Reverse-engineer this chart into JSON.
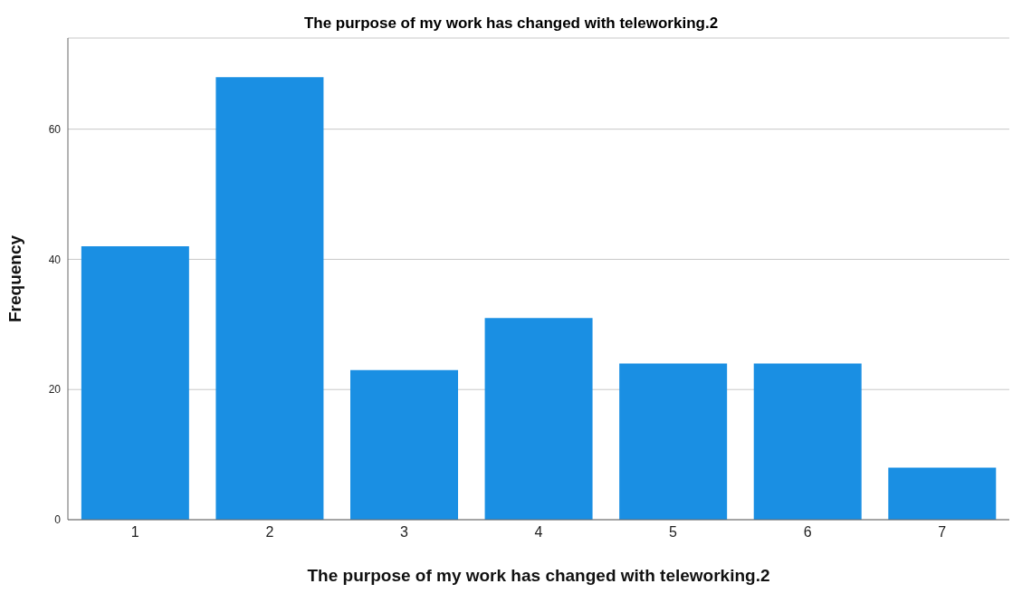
{
  "chart_data": {
    "type": "bar",
    "title": "The purpose of my work has changed with teleworking.2",
    "xlabel": "The purpose of my work has changed with teleworking.2",
    "ylabel": "Frequency",
    "categories": [
      "1",
      "2",
      "3",
      "4",
      "5",
      "6",
      "7"
    ],
    "values": [
      42,
      68,
      23,
      31,
      24,
      24,
      8
    ],
    "color": "#1a8fe3",
    "ylim": [
      0,
      74
    ],
    "yticks": [
      0,
      20,
      40,
      60
    ],
    "grid": "y"
  }
}
